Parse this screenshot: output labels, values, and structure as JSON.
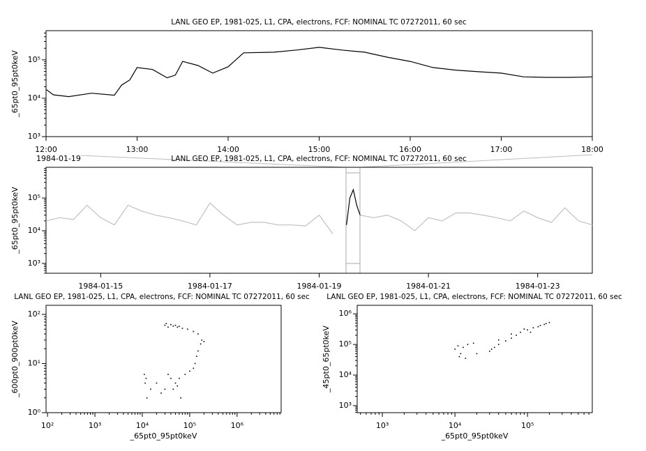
{
  "chart_data": [
    {
      "type": "line",
      "title": "LANL GEO EP, 1981-025, L1, CPA, electrons, FCF: NOMINAL TC 07272011, 60 sec",
      "ylabel": "_65pt0_95pt0keV",
      "date_label": "1984-01-19",
      "ylog": true,
      "color": "#000000",
      "x": [
        12.0,
        12.08,
        12.25,
        12.5,
        12.75,
        12.83,
        12.92,
        13.0,
        13.17,
        13.33,
        13.42,
        13.5,
        13.67,
        13.83,
        14.0,
        14.17,
        14.5,
        14.75,
        15.0,
        15.25,
        15.5,
        15.75,
        16.0,
        16.25,
        16.5,
        16.75,
        17.0,
        17.25,
        17.5,
        17.75,
        18.0
      ],
      "values": [
        17000,
        12300,
        11000,
        13500,
        12000,
        22000,
        30000,
        63000,
        56000,
        34000,
        40000,
        91000,
        71000,
        45000,
        66000,
        152000,
        158000,
        180000,
        212000,
        180000,
        158000,
        117000,
        91000,
        63000,
        54000,
        49000,
        45000,
        36000,
        35000,
        35000,
        36000
      ],
      "xlim": [
        12,
        18
      ],
      "xticks": [
        {
          "value": 12,
          "label": "12:00"
        },
        {
          "value": 13,
          "label": "13:00"
        },
        {
          "value": 14,
          "label": "14:00"
        },
        {
          "value": 15,
          "label": "15:00"
        },
        {
          "value": 16,
          "label": "16:00"
        },
        {
          "value": 17,
          "label": "17:00"
        },
        {
          "value": 18,
          "label": "18:00"
        }
      ],
      "ylim": [
        1000,
        575000
      ],
      "yticks": [
        {
          "value": 1000,
          "label": "10³"
        },
        {
          "value": 10000,
          "label": "10⁴"
        },
        {
          "value": 100000,
          "label": "10⁵"
        }
      ]
    },
    {
      "type": "line",
      "title": "LANL GEO EP, 1981-025, L1, CPA, electrons, FCF: NOMINAL TC 07272011, 60 sec",
      "ylabel": "_65pt0_95pt0keV",
      "ylog": true,
      "series": [
        {
          "color": "#c0c0c0",
          "x": [
            "1984-01-14T00:00",
            "1984-01-14T06:00",
            "1984-01-14T12:00",
            "1984-01-14T18:00",
            "1984-01-15T00:00",
            "1984-01-15T06:00",
            "1984-01-15T12:00",
            "1984-01-15T18:00",
            "1984-01-16T00:00",
            "1984-01-16T06:00",
            "1984-01-16T12:00",
            "1984-01-16T18:00",
            "1984-01-17T00:00",
            "1984-01-17T06:00",
            "1984-01-17T12:00",
            "1984-01-17T18:00",
            "1984-01-18T00:00",
            "1984-01-18T06:00",
            "1984-01-18T12:00",
            "1984-01-18T18:00",
            "1984-01-19T00:00",
            "1984-01-19T06:00",
            "1984-01-19T12:00",
            "1984-01-19T18:00",
            "1984-01-20T00:00",
            "1984-01-20T06:00",
            "1984-01-20T12:00",
            "1984-01-20T18:00",
            "1984-01-21T00:00",
            "1984-01-21T06:00",
            "1984-01-21T12:00",
            "1984-01-21T18:00",
            "1984-01-22T00:00",
            "1984-01-22T06:00",
            "1984-01-22T12:00",
            "1984-01-22T18:00",
            "1984-01-23T00:00",
            "1984-01-23T06:00",
            "1984-01-23T12:00",
            "1984-01-23T18:00",
            "1984-01-24T00:00"
          ],
          "values": [
            20000,
            25000,
            22000,
            60000,
            25000,
            15000,
            60000,
            40000,
            30000,
            25000,
            20000,
            15000,
            70000,
            30000,
            15000,
            18000,
            18000,
            15000,
            15000,
            14000,
            30000,
            8000,
            null,
            30000,
            25000,
            30000,
            20000,
            10000,
            25000,
            20000,
            35000,
            35000,
            30000,
            25000,
            20000,
            40000,
            25000,
            18000,
            50000,
            20000,
            15000
          ]
        },
        {
          "color": "#000000",
          "x": [
            "1984-01-19T12:00",
            "1984-01-19T13:30",
            "1984-01-19T15:00",
            "1984-01-19T16:30",
            "1984-01-19T18:00"
          ],
          "values": [
            15000,
            100000,
            180000,
            60000,
            30000
          ]
        }
      ],
      "xlim": [
        "1984-01-14",
        "1984-01-24"
      ],
      "xticks": [
        "1984-01-15",
        "1984-01-17",
        "1984-01-19",
        "1984-01-21",
        "1984-01-23"
      ],
      "ylim": [
        500,
        870000
      ],
      "yticks": [
        {
          "value": 1000,
          "label": "10³"
        },
        {
          "value": 10000,
          "label": "10⁴"
        },
        {
          "value": 100000,
          "label": "10⁵"
        }
      ]
    },
    {
      "type": "scatter",
      "title": "LANL GEO EP, 1981-025, L1, CPA, electrons, FCF: NOMINAL TC 07272011, 60 sec",
      "xlabel": "_65pt0_95pt0keV",
      "ylabel": "_600pt0_900pt0keV",
      "xlog": true,
      "ylog": true,
      "color": "#000000",
      "x": [
        30000,
        32000,
        35000,
        40000,
        45000,
        50000,
        55000,
        60000,
        70000,
        90000,
        120000,
        150000,
        180000,
        200000,
        170000,
        150000,
        140000,
        130000,
        120000,
        100000,
        80000,
        60000,
        50000,
        40000,
        30000,
        20000,
        15000,
        12000,
        11000,
        11500,
        12500,
        25000,
        45000,
        65000,
        35000,
        55000
      ],
      "values": [
        60,
        65,
        55,
        62,
        58,
        60,
        55,
        57,
        52,
        50,
        45,
        40,
        30,
        28,
        25,
        18,
        14,
        10,
        8,
        7,
        6,
        5,
        4,
        5,
        3,
        4,
        3,
        5,
        6,
        4,
        2,
        2.5,
        3,
        2,
        6,
        3.5
      ],
      "xlim": [
        93,
        8500000
      ],
      "xticks": [
        {
          "value": 100,
          "label": "10²"
        },
        {
          "value": 1000,
          "label": "10³"
        },
        {
          "value": 10000,
          "label": "10⁴"
        },
        {
          "value": 100000,
          "label": "10⁵"
        },
        {
          "value": 1000000,
          "label": "10⁶"
        }
      ],
      "ylim": [
        1,
        153
      ],
      "yticks": [
        {
          "value": 1,
          "label": "10⁰"
        },
        {
          "value": 10,
          "label": "10¹"
        },
        {
          "value": 100,
          "label": "10²"
        }
      ]
    },
    {
      "type": "scatter",
      "title": "LANL GEO EP, 1981-025, L1, CPA, electrons, FCF: NOMINAL TC 07272011, 60 sec",
      "xlabel": "_65pt0_95pt0keV",
      "ylabel": "_45pt0_65pt0keV",
      "xlog": true,
      "ylog": true,
      "color": "#000000",
      "x": [
        10000,
        11000,
        12000,
        13000,
        15000,
        11500,
        14000,
        18000,
        20000,
        30000,
        32000,
        35000,
        40000,
        50000,
        60000,
        70000,
        80000,
        100000,
        120000,
        150000,
        180000,
        200000,
        40000,
        60000,
        90000,
        140000,
        170000,
        110000
      ],
      "values": [
        70000,
        90000,
        50000,
        80000,
        100000,
        40000,
        35000,
        110000,
        50000,
        60000,
        70000,
        80000,
        100000,
        130000,
        160000,
        200000,
        250000,
        300000,
        350000,
        420000,
        480000,
        520000,
        140000,
        220000,
        320000,
        380000,
        450000,
        250000
      ],
      "xlim": [
        450,
        780000
      ],
      "xticks": [
        {
          "value": 1000,
          "label": "10³"
        },
        {
          "value": 10000,
          "label": "10⁴"
        },
        {
          "value": 100000,
          "label": "10⁵"
        }
      ],
      "ylim": [
        590,
        1900000
      ],
      "yticks": [
        {
          "value": 1000,
          "label": "10³"
        },
        {
          "value": 10000,
          "label": "10⁴"
        },
        {
          "value": 100000,
          "label": "10⁵"
        },
        {
          "value": 1000000,
          "label": "10⁶"
        }
      ]
    }
  ]
}
